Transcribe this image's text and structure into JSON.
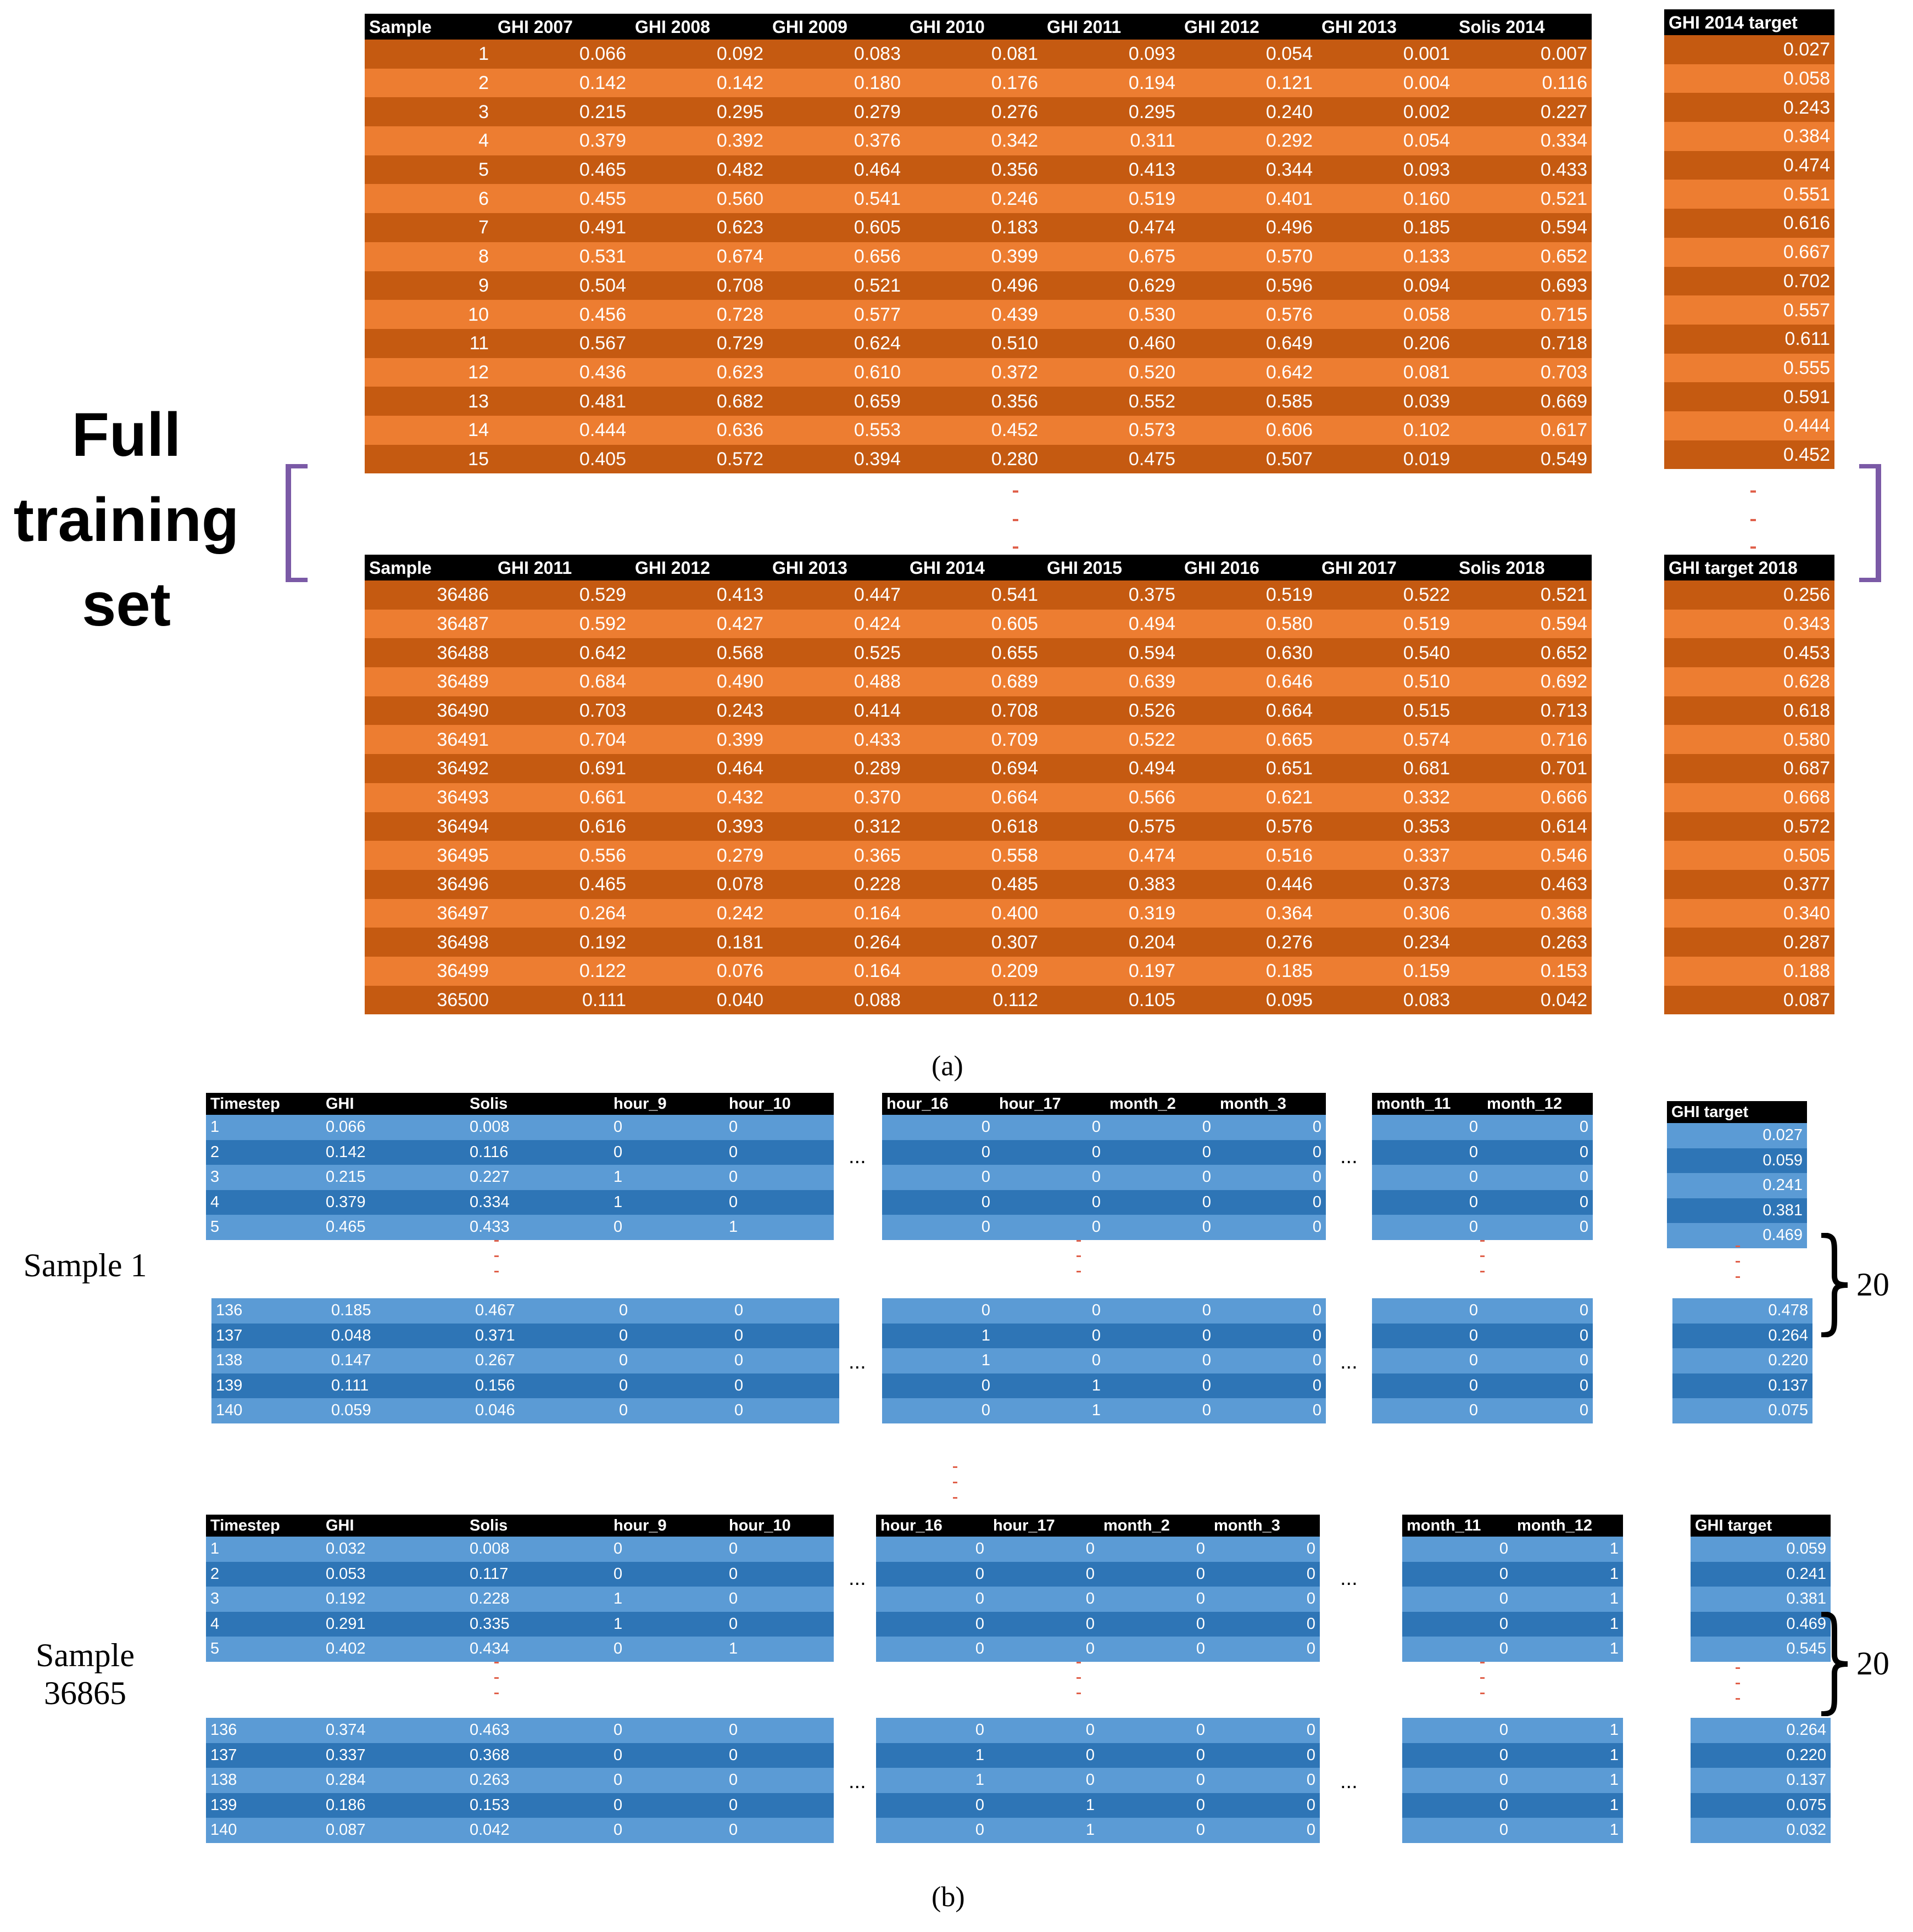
{
  "full_training_label": [
    "Full",
    "training",
    "set"
  ],
  "caption_a": "(a)",
  "caption_b": "(b)",
  "ellipsis": "...",
  "brace_value": "20",
  "part_a": {
    "top": {
      "headers": [
        "Sample",
        "GHI 2007",
        "GHI 2008",
        "GHI 2009",
        "GHI 2010",
        "GHI 2011",
        "GHI 2012",
        "GHI 2013",
        "Solis 2014"
      ],
      "rows": [
        [
          "1",
          "0.066",
          "0.092",
          "0.083",
          "0.081",
          "0.093",
          "0.054",
          "0.001",
          "0.007"
        ],
        [
          "2",
          "0.142",
          "0.142",
          "0.180",
          "0.176",
          "0.194",
          "0.121",
          "0.004",
          "0.116"
        ],
        [
          "3",
          "0.215",
          "0.295",
          "0.279",
          "0.276",
          "0.295",
          "0.240",
          "0.002",
          "0.227"
        ],
        [
          "4",
          "0.379",
          "0.392",
          "0.376",
          "0.342",
          "0.311",
          "0.292",
          "0.054",
          "0.334"
        ],
        [
          "5",
          "0.465",
          "0.482",
          "0.464",
          "0.356",
          "0.413",
          "0.344",
          "0.093",
          "0.433"
        ],
        [
          "6",
          "0.455",
          "0.560",
          "0.541",
          "0.246",
          "0.519",
          "0.401",
          "0.160",
          "0.521"
        ],
        [
          "7",
          "0.491",
          "0.623",
          "0.605",
          "0.183",
          "0.474",
          "0.496",
          "0.185",
          "0.594"
        ],
        [
          "8",
          "0.531",
          "0.674",
          "0.656",
          "0.399",
          "0.675",
          "0.570",
          "0.133",
          "0.652"
        ],
        [
          "9",
          "0.504",
          "0.708",
          "0.521",
          "0.496",
          "0.629",
          "0.596",
          "0.094",
          "0.693"
        ],
        [
          "10",
          "0.456",
          "0.728",
          "0.577",
          "0.439",
          "0.530",
          "0.576",
          "0.058",
          "0.715"
        ],
        [
          "11",
          "0.567",
          "0.729",
          "0.624",
          "0.510",
          "0.460",
          "0.649",
          "0.206",
          "0.718"
        ],
        [
          "12",
          "0.436",
          "0.623",
          "0.610",
          "0.372",
          "0.520",
          "0.642",
          "0.081",
          "0.703"
        ],
        [
          "13",
          "0.481",
          "0.682",
          "0.659",
          "0.356",
          "0.552",
          "0.585",
          "0.039",
          "0.669"
        ],
        [
          "14",
          "0.444",
          "0.636",
          "0.553",
          "0.452",
          "0.573",
          "0.606",
          "0.102",
          "0.617"
        ],
        [
          "15",
          "0.405",
          "0.572",
          "0.394",
          "0.280",
          "0.475",
          "0.507",
          "0.019",
          "0.549"
        ]
      ],
      "target_header": "GHI 2014 target",
      "target": [
        "0.027",
        "0.058",
        "0.243",
        "0.384",
        "0.474",
        "0.551",
        "0.616",
        "0.667",
        "0.702",
        "0.557",
        "0.611",
        "0.555",
        "0.591",
        "0.444",
        "0.452"
      ]
    },
    "bottom": {
      "headers": [
        "Sample",
        "GHI 2011",
        "GHI 2012",
        "GHI 2013",
        "GHI 2014",
        "GHI 2015",
        "GHI 2016",
        "GHI 2017",
        "Solis 2018"
      ],
      "rows": [
        [
          "36486",
          "0.529",
          "0.413",
          "0.447",
          "0.541",
          "0.375",
          "0.519",
          "0.522",
          "0.521"
        ],
        [
          "36487",
          "0.592",
          "0.427",
          "0.424",
          "0.605",
          "0.494",
          "0.580",
          "0.519",
          "0.594"
        ],
        [
          "36488",
          "0.642",
          "0.568",
          "0.525",
          "0.655",
          "0.594",
          "0.630",
          "0.540",
          "0.652"
        ],
        [
          "36489",
          "0.684",
          "0.490",
          "0.488",
          "0.689",
          "0.639",
          "0.646",
          "0.510",
          "0.692"
        ],
        [
          "36490",
          "0.703",
          "0.243",
          "0.414",
          "0.708",
          "0.526",
          "0.664",
          "0.515",
          "0.713"
        ],
        [
          "36491",
          "0.704",
          "0.399",
          "0.433",
          "0.709",
          "0.522",
          "0.665",
          "0.574",
          "0.716"
        ],
        [
          "36492",
          "0.691",
          "0.464",
          "0.289",
          "0.694",
          "0.494",
          "0.651",
          "0.681",
          "0.701"
        ],
        [
          "36493",
          "0.661",
          "0.432",
          "0.370",
          "0.664",
          "0.566",
          "0.621",
          "0.332",
          "0.666"
        ],
        [
          "36494",
          "0.616",
          "0.393",
          "0.312",
          "0.618",
          "0.575",
          "0.576",
          "0.353",
          "0.614"
        ],
        [
          "36495",
          "0.556",
          "0.279",
          "0.365",
          "0.558",
          "0.474",
          "0.516",
          "0.337",
          "0.546"
        ],
        [
          "36496",
          "0.465",
          "0.078",
          "0.228",
          "0.485",
          "0.383",
          "0.446",
          "0.373",
          "0.463"
        ],
        [
          "36497",
          "0.264",
          "0.242",
          "0.164",
          "0.400",
          "0.319",
          "0.364",
          "0.306",
          "0.368"
        ],
        [
          "36498",
          "0.192",
          "0.181",
          "0.264",
          "0.307",
          "0.204",
          "0.276",
          "0.234",
          "0.263"
        ],
        [
          "36499",
          "0.122",
          "0.076",
          "0.164",
          "0.209",
          "0.197",
          "0.185",
          "0.159",
          "0.153"
        ],
        [
          "36500",
          "0.111",
          "0.040",
          "0.088",
          "0.112",
          "0.105",
          "0.095",
          "0.083",
          "0.042"
        ]
      ],
      "target_header": "GHI target 2018",
      "target": [
        "0.256",
        "0.343",
        "0.453",
        "0.628",
        "0.618",
        "0.580",
        "0.687",
        "0.668",
        "0.572",
        "0.505",
        "0.377",
        "0.340",
        "0.287",
        "0.188",
        "0.087"
      ]
    }
  },
  "part_b": {
    "headers_a": [
      "Timestep",
      "GHI",
      "Solis",
      "hour_9",
      "hour_10"
    ],
    "headers_b": [
      "hour_16",
      "hour_17",
      "month_2",
      "month_3"
    ],
    "headers_c": [
      "month_11",
      "month_12"
    ],
    "target_header": "GHI target",
    "samples": [
      {
        "label": [
          "Sample 1"
        ],
        "first_a": [
          [
            "1",
            "0.066",
            "0.008",
            "0",
            "0"
          ],
          [
            "2",
            "0.142",
            "0.116",
            "0",
            "0"
          ],
          [
            "3",
            "0.215",
            "0.227",
            "1",
            "0"
          ],
          [
            "4",
            "0.379",
            "0.334",
            "1",
            "0"
          ],
          [
            "5",
            "0.465",
            "0.433",
            "0",
            "1"
          ]
        ],
        "first_b": [
          [
            "0",
            "0",
            "0",
            "0"
          ],
          [
            "0",
            "0",
            "0",
            "0"
          ],
          [
            "0",
            "0",
            "0",
            "0"
          ],
          [
            "0",
            "0",
            "0",
            "0"
          ],
          [
            "0",
            "0",
            "0",
            "0"
          ]
        ],
        "first_c": [
          [
            "0",
            "0"
          ],
          [
            "0",
            "0"
          ],
          [
            "0",
            "0"
          ],
          [
            "0",
            "0"
          ],
          [
            "0",
            "0"
          ]
        ],
        "first_t": [
          "0.027",
          "0.059",
          "0.241",
          "0.381",
          "0.469"
        ],
        "last_a": [
          [
            "136",
            "0.185",
            "0.467",
            "0",
            "0"
          ],
          [
            "137",
            "0.048",
            "0.371",
            "0",
            "0"
          ],
          [
            "138",
            "0.147",
            "0.267",
            "0",
            "0"
          ],
          [
            "139",
            "0.111",
            "0.156",
            "0",
            "0"
          ],
          [
            "140",
            "0.059",
            "0.046",
            "0",
            "0"
          ]
        ],
        "last_b": [
          [
            "0",
            "0",
            "0",
            "0"
          ],
          [
            "1",
            "0",
            "0",
            "0"
          ],
          [
            "1",
            "0",
            "0",
            "0"
          ],
          [
            "0",
            "1",
            "0",
            "0"
          ],
          [
            "0",
            "1",
            "0",
            "0"
          ]
        ],
        "last_c": [
          [
            "0",
            "0"
          ],
          [
            "0",
            "0"
          ],
          [
            "0",
            "0"
          ],
          [
            "0",
            "0"
          ],
          [
            "0",
            "0"
          ]
        ],
        "last_t": [
          "0.478",
          "0.264",
          "0.220",
          "0.137",
          "0.075"
        ]
      },
      {
        "label": [
          "Sample",
          "36865"
        ],
        "first_a": [
          [
            "1",
            "0.032",
            "0.008",
            "0",
            "0"
          ],
          [
            "2",
            "0.053",
            "0.117",
            "0",
            "0"
          ],
          [
            "3",
            "0.192",
            "0.228",
            "1",
            "0"
          ],
          [
            "4",
            "0.291",
            "0.335",
            "1",
            "0"
          ],
          [
            "5",
            "0.402",
            "0.434",
            "0",
            "1"
          ]
        ],
        "first_b": [
          [
            "0",
            "0",
            "0",
            "0"
          ],
          [
            "0",
            "0",
            "0",
            "0"
          ],
          [
            "0",
            "0",
            "0",
            "0"
          ],
          [
            "0",
            "0",
            "0",
            "0"
          ],
          [
            "0",
            "0",
            "0",
            "0"
          ]
        ],
        "first_c": [
          [
            "0",
            "1"
          ],
          [
            "0",
            "1"
          ],
          [
            "0",
            "1"
          ],
          [
            "0",
            "1"
          ],
          [
            "0",
            "1"
          ]
        ],
        "first_t": [
          "0.059",
          "0.241",
          "0.381",
          "0.469",
          "0.545"
        ],
        "last_a": [
          [
            "136",
            "0.374",
            "0.463",
            "0",
            "0"
          ],
          [
            "137",
            "0.337",
            "0.368",
            "0",
            "0"
          ],
          [
            "138",
            "0.284",
            "0.263",
            "0",
            "0"
          ],
          [
            "139",
            "0.186",
            "0.153",
            "0",
            "0"
          ],
          [
            "140",
            "0.087",
            "0.042",
            "0",
            "0"
          ]
        ],
        "last_b": [
          [
            "0",
            "0",
            "0",
            "0"
          ],
          [
            "1",
            "0",
            "0",
            "0"
          ],
          [
            "1",
            "0",
            "0",
            "0"
          ],
          [
            "0",
            "1",
            "0",
            "0"
          ],
          [
            "0",
            "1",
            "0",
            "0"
          ]
        ],
        "last_c": [
          [
            "0",
            "1"
          ],
          [
            "0",
            "1"
          ],
          [
            "0",
            "1"
          ],
          [
            "0",
            "1"
          ],
          [
            "0",
            "1"
          ]
        ],
        "last_t": [
          "0.264",
          "0.220",
          "0.137",
          "0.075",
          "0.032"
        ]
      }
    ]
  },
  "colors": {
    "orange_light": "#ed7d31",
    "orange_dark": "#c55a11",
    "blue_light": "#5b9bd5",
    "blue_dark": "#2e75b6",
    "header": "#000000",
    "bracket": "#7b5aa6",
    "dash": "#e0604a"
  }
}
